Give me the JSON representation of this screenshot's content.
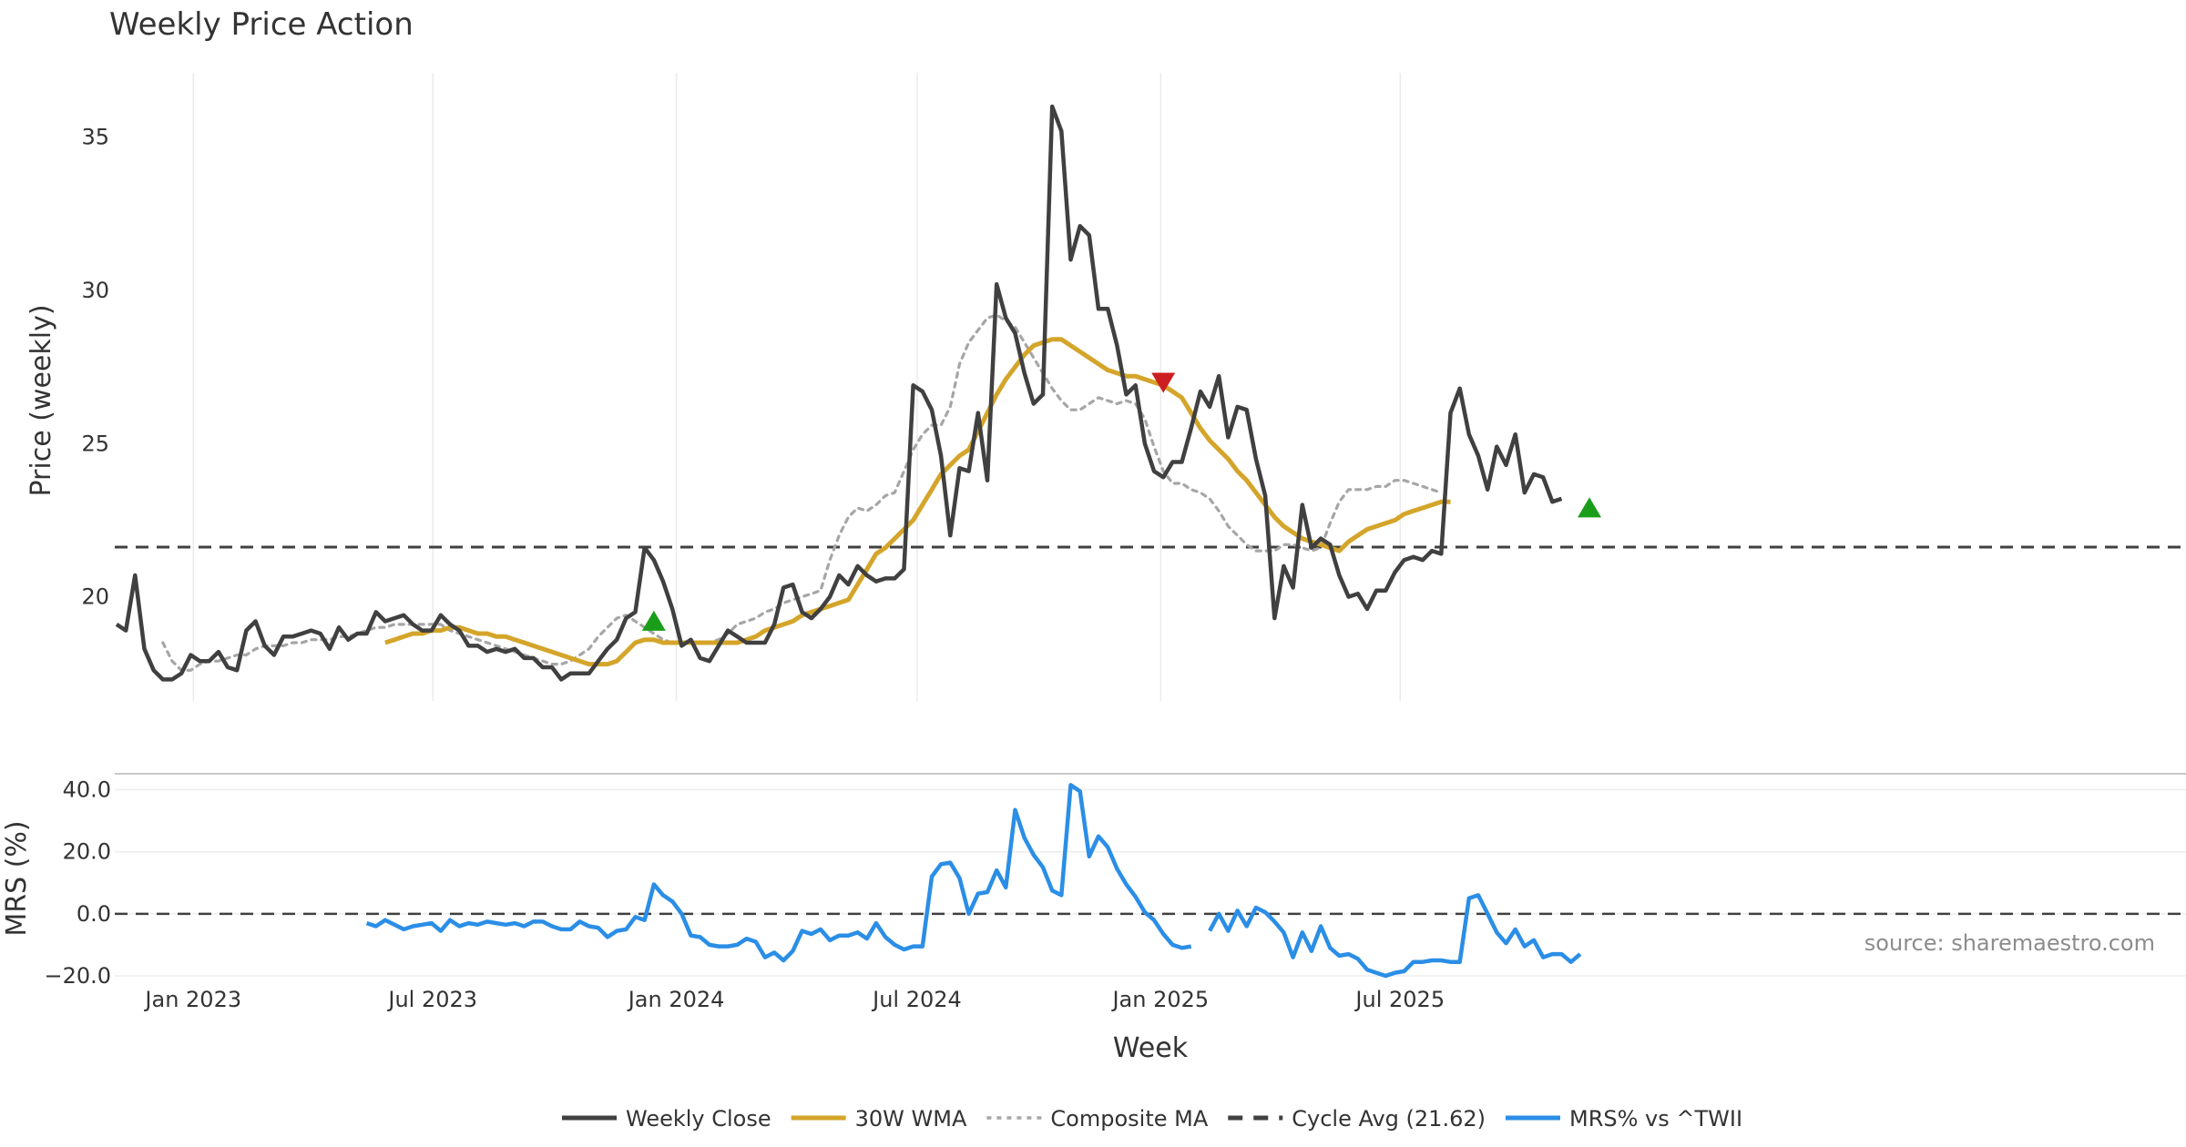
{
  "chart_data": [
    {
      "type": "line",
      "title": "Weekly Price Action",
      "xlabel": "",
      "ylabel": "Price (weekly)",
      "ylim": [
        16.6,
        37.1
      ],
      "yticks": [
        20,
        25,
        30,
        35
      ],
      "grid": true,
      "x_start": "2022-11-04",
      "x_step_days": 7,
      "series": [
        {
          "name": "Weekly Close",
          "color": "#404040",
          "style": "solid",
          "values": [
            19.1,
            18.9,
            20.7,
            18.3,
            17.6,
            17.3,
            17.3,
            17.5,
            18.1,
            17.9,
            17.9,
            18.2,
            17.7,
            17.6,
            18.9,
            19.2,
            18.4,
            18.1,
            18.7,
            18.7,
            18.8,
            18.9,
            18.8,
            18.3,
            19.0,
            18.6,
            18.8,
            18.8,
            19.5,
            19.2,
            19.3,
            19.4,
            19.1,
            18.9,
            18.9,
            19.4,
            19.1,
            18.9,
            18.4,
            18.4,
            18.2,
            18.3,
            18.2,
            18.3,
            18.0,
            18.0,
            17.7,
            17.7,
            17.3,
            17.5,
            17.5,
            17.5,
            17.9,
            18.3,
            18.6,
            19.3,
            19.5,
            21.6,
            21.2,
            20.5,
            19.6,
            18.4,
            18.6,
            18.0,
            17.9,
            18.4,
            18.9,
            18.7,
            18.5,
            18.5,
            18.5,
            19.1,
            20.3,
            20.4,
            19.5,
            19.3,
            19.6,
            20.0,
            20.7,
            20.4,
            21.0,
            20.7,
            20.5,
            20.6,
            20.6,
            20.9,
            26.9,
            26.7,
            26.1,
            24.6,
            22.0,
            24.2,
            24.1,
            26.0,
            23.8,
            30.2,
            29.1,
            28.6,
            27.3,
            26.3,
            26.6,
            36.0,
            35.2,
            31.0,
            32.1,
            31.8,
            29.4,
            29.4,
            28.2,
            26.6,
            26.9,
            25.0,
            24.1,
            23.9,
            24.4,
            24.4,
            25.5,
            26.7,
            26.2,
            27.2,
            25.2,
            26.2,
            26.1,
            24.5,
            23.3,
            19.3,
            21.0,
            20.3,
            23.0,
            21.6,
            21.9,
            21.7,
            20.7,
            20.0,
            20.1,
            19.6,
            20.2,
            20.2,
            20.8,
            21.2,
            21.3,
            21.2,
            21.5,
            21.4,
            26.0,
            26.8,
            25.3,
            24.6,
            23.5,
            24.9,
            24.3,
            25.3,
            23.4,
            24.0,
            23.9,
            23.1,
            23.2
          ]
        },
        {
          "name": "30W WMA",
          "color": "#d4a52a",
          "style": "solid",
          "start_index": 29,
          "values": [
            18.5,
            18.6,
            18.7,
            18.8,
            18.8,
            18.9,
            18.9,
            19.0,
            19.0,
            18.9,
            18.8,
            18.8,
            18.7,
            18.7,
            18.6,
            18.5,
            18.4,
            18.3,
            18.2,
            18.1,
            18.0,
            17.9,
            17.8,
            17.8,
            17.8,
            17.9,
            18.2,
            18.5,
            18.6,
            18.6,
            18.5,
            18.5,
            18.5,
            18.5,
            18.5,
            18.5,
            18.5,
            18.5,
            18.5,
            18.6,
            18.7,
            18.9,
            19.0,
            19.1,
            19.2,
            19.4,
            19.5,
            19.6,
            19.7,
            19.8,
            19.9,
            20.4,
            20.9,
            21.4,
            21.6,
            21.9,
            22.2,
            22.5,
            23.0,
            23.5,
            24.0,
            24.3,
            24.6,
            24.8,
            25.4,
            26.0,
            26.6,
            27.1,
            27.5,
            27.9,
            28.2,
            28.3,
            28.4,
            28.4,
            28.2,
            28.0,
            27.8,
            27.6,
            27.4,
            27.3,
            27.2,
            27.2,
            27.1,
            27.0,
            26.9,
            26.7,
            26.5,
            26.0,
            25.5,
            25.1,
            24.8,
            24.5,
            24.1,
            23.8,
            23.4,
            23.0,
            22.6,
            22.3,
            22.1,
            21.9,
            21.8,
            21.7,
            21.6,
            21.5,
            21.8,
            22.0,
            22.2,
            22.3,
            22.4,
            22.5,
            22.7,
            22.8,
            22.9,
            23.0,
            23.1,
            23.1
          ]
        },
        {
          "name": "Composite MA",
          "color": "#a6a6a6",
          "style": "dotted",
          "start_index": 5,
          "values": [
            18.5,
            17.9,
            17.6,
            17.6,
            17.8,
            17.9,
            17.9,
            18.0,
            18.1,
            18.1,
            18.3,
            18.4,
            18.4,
            18.4,
            18.5,
            18.5,
            18.6,
            18.6,
            18.6,
            18.7,
            18.7,
            18.8,
            18.9,
            19.0,
            19.0,
            19.1,
            19.1,
            19.1,
            19.1,
            19.1,
            19.1,
            18.9,
            18.8,
            18.7,
            18.6,
            18.5,
            18.4,
            18.3,
            18.2,
            18.1,
            18.0,
            17.9,
            17.8,
            17.8,
            17.9,
            18.1,
            18.3,
            18.7,
            19.0,
            19.3,
            19.4,
            19.2,
            19.0,
            18.8,
            18.6,
            18.5,
            18.5,
            18.5,
            18.5,
            18.5,
            18.6,
            18.8,
            19.1,
            19.2,
            19.3,
            19.5,
            19.6,
            19.8,
            19.9,
            20.0,
            20.1,
            20.2,
            21.2,
            22.0,
            22.6,
            22.9,
            22.8,
            23.0,
            23.3,
            23.4,
            24.1,
            24.8,
            25.3,
            25.6,
            25.6,
            26.2,
            27.6,
            28.3,
            28.7,
            29.1,
            29.2,
            29.0,
            28.8,
            28.3,
            27.8,
            27.3,
            26.8,
            26.4,
            26.1,
            26.1,
            26.3,
            26.5,
            26.4,
            26.3,
            26.4,
            26.3,
            25.8,
            24.9,
            24.1,
            23.7,
            23.7,
            23.5,
            23.4,
            23.2,
            22.8,
            22.3,
            22.0,
            21.7,
            21.5,
            21.5,
            21.5,
            21.7,
            21.7,
            21.6,
            21.5,
            21.6,
            22.4,
            23.1,
            23.5,
            23.5,
            23.5,
            23.6,
            23.6,
            23.8,
            23.8,
            23.7,
            23.6,
            23.5,
            23.4
          ]
        },
        {
          "name": "Cycle Avg (21.62)",
          "color": "#404040",
          "style": "dashed",
          "constant": 21.62
        }
      ],
      "markers": [
        {
          "kind": "buy",
          "index": 58,
          "y": 19.2,
          "color": "#1a9e1a"
        },
        {
          "kind": "sell",
          "index": 113,
          "y": 27.0,
          "color": "#cc1f1f"
        },
        {
          "kind": "buy",
          "index": 159,
          "y": 22.9,
          "color": "#1a9e1a"
        }
      ]
    },
    {
      "type": "line",
      "title": "",
      "xlabel": "Week",
      "ylabel": "MRS (%)",
      "ylim": [
        -20.0,
        42.8
      ],
      "yticks": [
        -20.0,
        0.0,
        20.0,
        40.0
      ],
      "ytick_labels": [
        "−20.0",
        "0.0",
        "20.0",
        "40.0"
      ],
      "reference_line": 0.0,
      "xticks": [
        {
          "label": "Jan 2023",
          "date": "2023-01-01"
        },
        {
          "label": "Jul 2023",
          "date": "2023-07-01"
        },
        {
          "label": "Jan 2024",
          "date": "2024-01-01"
        },
        {
          "label": "Jul 2024",
          "date": "2024-07-01"
        },
        {
          "label": "Jan 2025",
          "date": "2025-01-01"
        },
        {
          "label": "Jul 2025",
          "date": "2025-07-01"
        }
      ],
      "series": [
        {
          "name": "MRS% vs ^TWII",
          "color": "#2b8ee6",
          "style": "solid",
          "start_index": 27,
          "values": [
            -3.0,
            -4.0,
            -2.0,
            -3.5,
            -5.0,
            -4.0,
            -3.5,
            -3.0,
            -5.5,
            -2.0,
            -4.0,
            -3.0,
            -3.5,
            -2.5,
            -3.0,
            -3.5,
            -3.0,
            -4.0,
            -2.5,
            -2.5,
            -4.0,
            -5.0,
            -5.0,
            -2.5,
            -4.0,
            -4.5,
            -7.5,
            -5.5,
            -5.0,
            -1.0,
            -2.0,
            9.5,
            6.0,
            4.0,
            0.0,
            -7.0,
            -7.5,
            -10.0,
            -10.5,
            -10.5,
            -10.0,
            -8.0,
            -9.0,
            -14.0,
            -12.5,
            -15.0,
            -12.0,
            -5.5,
            -6.5,
            -5.0,
            -8.5,
            -7.0,
            -7.0,
            -6.0,
            -8.0,
            -3.0,
            -7.5,
            -10.0,
            -11.5,
            -10.5,
            -10.5,
            12.0,
            16.0,
            16.5,
            11.5,
            0.0,
            6.5,
            7.0,
            14.0,
            8.5,
            33.5,
            24.5,
            19.0,
            15.0,
            7.5,
            6.0,
            41.5,
            39.5,
            18.5,
            25.0,
            21.5,
            14.5,
            9.5,
            5.5,
            0.5,
            -2.0,
            -6.5,
            -10.0,
            -11.0,
            -10.5,
            null,
            -5.5,
            0.0,
            -5.5,
            1.0,
            -4.0,
            2.0,
            0.5,
            -2.5,
            -6.0,
            -14.0,
            -6.0,
            -12.0,
            -4.0,
            -11.0,
            -13.5,
            -13.0,
            -14.5,
            -18.0,
            -19.0,
            -20.0,
            -19.0,
            -18.5,
            -15.5,
            -15.5,
            -15.0,
            -15.0,
            -15.5,
            -15.5,
            5.0,
            6.0,
            0.0,
            -6.0,
            -9.5,
            -5.0,
            -10.5,
            -8.5,
            -14.0,
            -13.0,
            -13.0,
            -15.5,
            -13.0
          ]
        }
      ]
    }
  ],
  "legend": {
    "items": [
      {
        "label": "Weekly Close",
        "color": "#404040",
        "style": "solid"
      },
      {
        "label": "30W WMA",
        "color": "#d4a52a",
        "style": "solid"
      },
      {
        "label": "Composite MA",
        "color": "#a6a6a6",
        "style": "dotted"
      },
      {
        "label": "Cycle Avg (21.62)",
        "color": "#404040",
        "style": "dashed"
      },
      {
        "label": "MRS% vs ^TWII",
        "color": "#2b8ee6",
        "style": "solid"
      }
    ]
  },
  "watermark": "source: sharemaestro.com"
}
